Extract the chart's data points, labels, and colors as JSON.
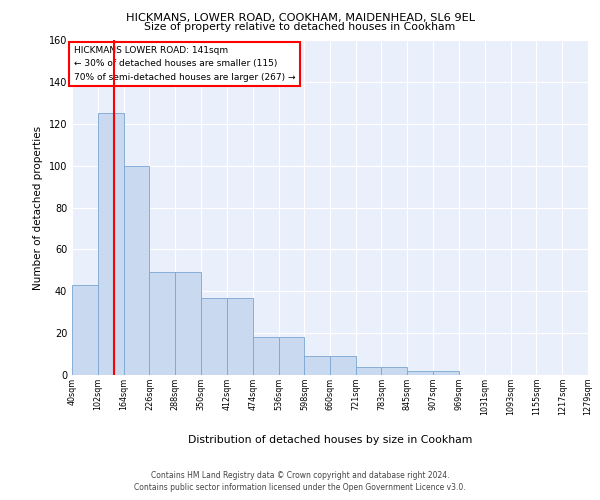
{
  "title1": "HICKMANS, LOWER ROAD, COOKHAM, MAIDENHEAD, SL6 9EL",
  "title2": "Size of property relative to detached houses in Cookham",
  "xlabel": "Distribution of detached houses by size in Cookham",
  "ylabel": "Number of detached properties",
  "bar_edges": [
    40,
    102,
    164,
    226,
    288,
    350,
    412,
    474,
    536,
    598,
    660,
    721,
    783,
    845,
    907,
    969,
    1031,
    1093,
    1155,
    1217,
    1279
  ],
  "bar_heights": [
    43,
    125,
    100,
    49,
    49,
    37,
    37,
    18,
    18,
    9,
    9,
    4,
    4,
    2,
    2,
    0,
    0,
    0,
    0,
    0,
    2
  ],
  "bar_color": "#c9d9f0",
  "bar_edge_color": "#7aa5d2",
  "red_line_x": 141,
  "annotation_text": "HICKMANS LOWER ROAD: 141sqm\n← 30% of detached houses are smaller (115)\n70% of semi-detached houses are larger (267) →",
  "annotation_box_color": "white",
  "annotation_border_color": "red",
  "ylim": [
    0,
    160
  ],
  "yticks": [
    0,
    20,
    40,
    60,
    80,
    100,
    120,
    140,
    160
  ],
  "tick_labels": [
    "40sqm",
    "102sqm",
    "164sqm",
    "226sqm",
    "288sqm",
    "350sqm",
    "412sqm",
    "474sqm",
    "536sqm",
    "598sqm",
    "660sqm",
    "721sqm",
    "783sqm",
    "845sqm",
    "907sqm",
    "969sqm",
    "1031sqm",
    "1093sqm",
    "1155sqm",
    "1217sqm",
    "1279sqm"
  ],
  "footer": "Contains HM Land Registry data © Crown copyright and database right 2024.\nContains public sector information licensed under the Open Government Licence v3.0.",
  "bg_color": "#eaf0fb",
  "grid_color": "white",
  "fig_bg_color": "white"
}
